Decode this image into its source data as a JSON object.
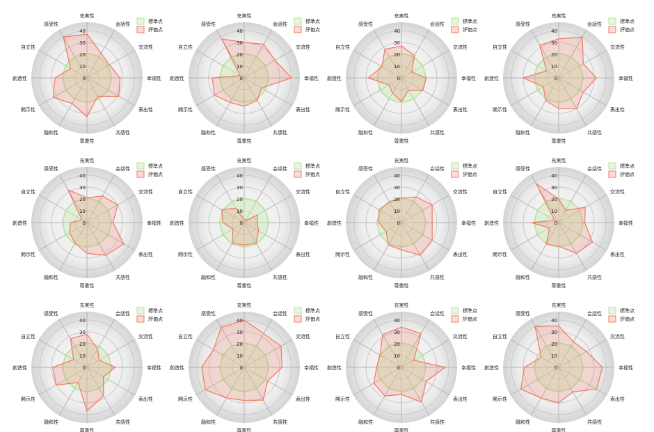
{
  "chart_data": {
    "type": "radar",
    "axes": [
      "充実性",
      "会話性",
      "交流性",
      "幸福性",
      "表出性",
      "共感性",
      "尊重性",
      "融和性",
      "開示性",
      "創造性",
      "自立性",
      "感受性"
    ],
    "ticks": [
      0,
      10,
      20,
      30,
      40
    ],
    "rlim": [
      0,
      40
    ],
    "legend": {
      "position": "top-right",
      "entries": [
        "標準点",
        "評価点"
      ]
    },
    "colors": {
      "standard_fill": "#e8f5e0",
      "standard_line": "#b8e29a",
      "eval_fill": "rgba(240,120,100,0.22)",
      "eval_line": "#f07862"
    },
    "charts": [
      {
        "standard": [
          21,
          21,
          21,
          21,
          21,
          21,
          21,
          21,
          21,
          21,
          21,
          21
        ],
        "evaluation": [
          37,
          24,
          22,
          28,
          31,
          18,
          33,
          25,
          33,
          27,
          16,
          40
        ]
      },
      {
        "standard": [
          21,
          21,
          21,
          21,
          21,
          21,
          21,
          21,
          21,
          21,
          21,
          21
        ],
        "evaluation": [
          30,
          33,
          30,
          40,
          17,
          22,
          24,
          24,
          29,
          27,
          4,
          38
        ]
      },
      {
        "standard": [
          21,
          21,
          21,
          21,
          21,
          21,
          21,
          21,
          21,
          21,
          21,
          21
        ],
        "evaluation": [
          27,
          22,
          10,
          21,
          21,
          12,
          20,
          15,
          12,
          28,
          19,
          28
        ]
      },
      {
        "standard": [
          21,
          21,
          21,
          21,
          21,
          21,
          21,
          21,
          21,
          21,
          21,
          21
        ],
        "evaluation": [
          33,
          40,
          24,
          32,
          24,
          30,
          26,
          22,
          15,
          30,
          12,
          32
        ]
      },
      {
        "standard": [
          21,
          21,
          21,
          21,
          21,
          21,
          21,
          21,
          21,
          21,
          21,
          21
        ],
        "evaluation": [
          21,
          26,
          30,
          22,
          36,
          32,
          26,
          20,
          17,
          14,
          5,
          32
        ]
      },
      {
        "standard": [
          21,
          21,
          21,
          21,
          21,
          21,
          21,
          21,
          21,
          21,
          21,
          21
        ],
        "evaluation": [
          3,
          2,
          13,
          11,
          14,
          20,
          19,
          20,
          11,
          18,
          22,
          14
        ]
      },
      {
        "standard": [
          21,
          21,
          21,
          21,
          21,
          21,
          21,
          21,
          21,
          21,
          21,
          21
        ],
        "evaluation": [
          21,
          25,
          30,
          26,
          30,
          32,
          23,
          22,
          15,
          19,
          22,
          20
        ]
      },
      {
        "standard": [
          21,
          21,
          21,
          21,
          21,
          21,
          21,
          21,
          21,
          21,
          21,
          21
        ],
        "evaluation": [
          20,
          12,
          26,
          22,
          33,
          30,
          20,
          21,
          9,
          23,
          4,
          38
        ]
      },
      {
        "standard": [
          21,
          21,
          21,
          21,
          21,
          21,
          21,
          21,
          21,
          21,
          21,
          21
        ],
        "evaluation": [
          28,
          18,
          12,
          24,
          16,
          28,
          37,
          15,
          30,
          29,
          13,
          28
        ]
      },
      {
        "standard": [
          21,
          21,
          21,
          21,
          21,
          21,
          21,
          21,
          21,
          21,
          21,
          21
        ],
        "evaluation": [
          40,
          33,
          36,
          32,
          23,
          32,
          28,
          30,
          38,
          36,
          30,
          39
        ]
      },
      {
        "standard": [
          21,
          21,
          21,
          21,
          21,
          21,
          21,
          21,
          21,
          21,
          21,
          21
        ],
        "evaluation": [
          34,
          33,
          12,
          37,
          24,
          34,
          23,
          28,
          27,
          21,
          21,
          32
        ]
      },
      {
        "standard": [
          21,
          21,
          21,
          21,
          21,
          21,
          21,
          21,
          21,
          21,
          21,
          21
        ],
        "evaluation": [
          35,
          25,
          27,
          37,
          37,
          24,
          30,
          30,
          37,
          29,
          17,
          40
        ]
      }
    ]
  }
}
